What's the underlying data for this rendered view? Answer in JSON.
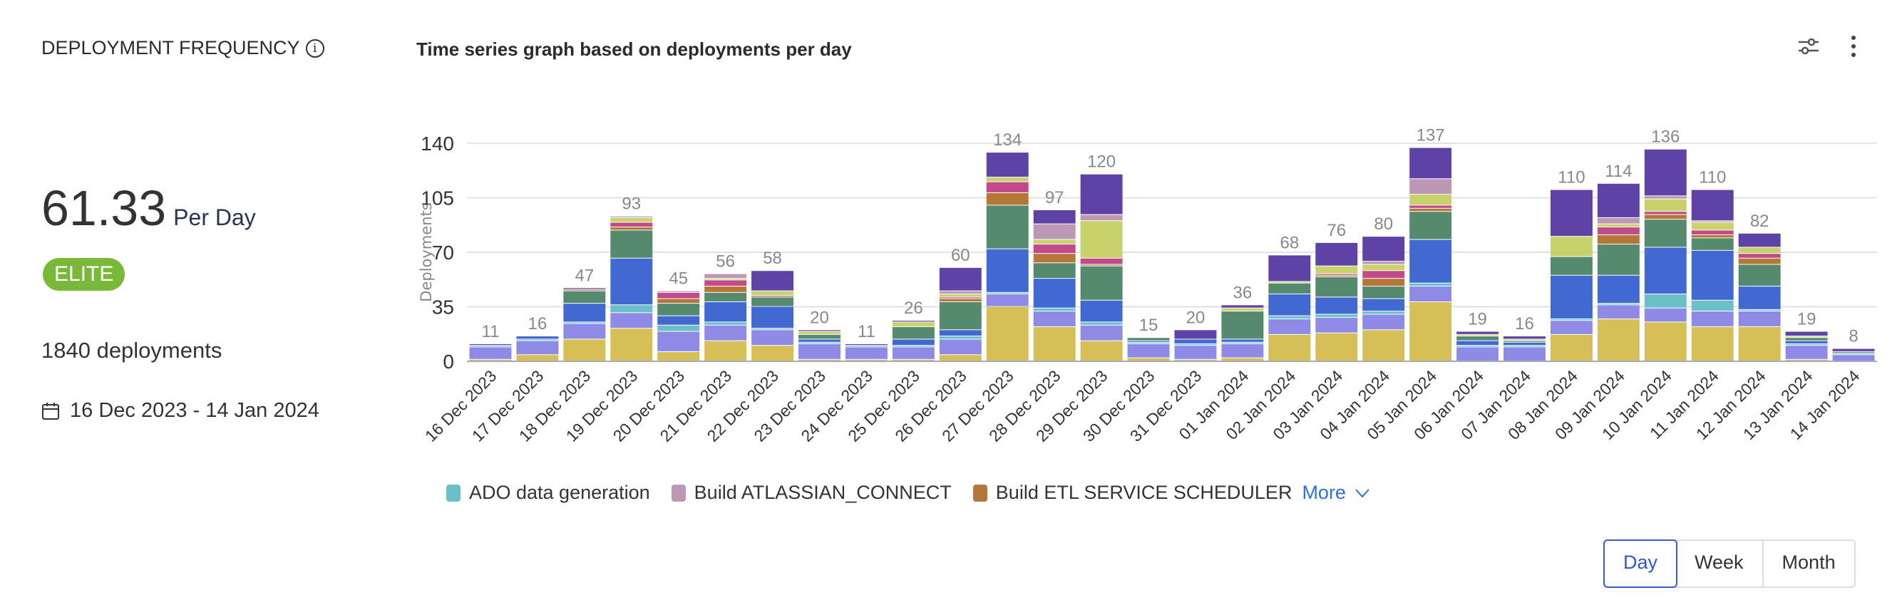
{
  "metric": {
    "title": "DEPLOYMENT FREQUENCY",
    "value": "61.33",
    "unit": "Per Day",
    "badge": "ELITE",
    "badge_color": "#7ab83a",
    "count": "1840 deployments",
    "date_range": "16 Dec 2023 - 14 Jan 2024"
  },
  "chart_header": {
    "title": "Time series graph based on deployments per day",
    "icons": [
      "sliders-icon",
      "more-vertical-icon"
    ]
  },
  "legend": {
    "items": [
      {
        "label": "ADO data generation",
        "color": "#6bbfc6"
      },
      {
        "label": "Build ATLASSIAN_CONNECT",
        "color": "#bd98b5"
      },
      {
        "label": "Build ETL SERVICE SCHEDULER",
        "color": "#b5763a"
      }
    ],
    "more_label": "More"
  },
  "periods": {
    "options": [
      "Day",
      "Week",
      "Month"
    ],
    "selected": "Day"
  },
  "chart_data": {
    "type": "bar",
    "stacked": true,
    "title": "",
    "ylabel": "Deployments",
    "xlabel": "",
    "ylim": [
      0,
      140
    ],
    "yticks": [
      0,
      35,
      70,
      105,
      140
    ],
    "grid": true,
    "categories": [
      "16 Dec 2023",
      "17 Dec 2023",
      "18 Dec 2023",
      "19 Dec 2023",
      "20 Dec 2023",
      "21 Dec 2023",
      "22 Dec 2023",
      "23 Dec 2023",
      "24 Dec 2023",
      "25 Dec 2023",
      "26 Dec 2023",
      "27 Dec 2023",
      "28 Dec 2023",
      "29 Dec 2023",
      "30 Dec 2023",
      "31 Dec 2023",
      "01 Jan 2024",
      "02 Jan 2024",
      "03 Jan 2024",
      "04 Jan 2024",
      "05 Jan 2024",
      "06 Jan 2024",
      "07 Jan 2024",
      "08 Jan 2024",
      "09 Jan 2024",
      "10 Jan 2024",
      "11 Jan 2024",
      "12 Jan 2024",
      "13 Jan 2024",
      "14 Jan 2024"
    ],
    "totals": [
      11,
      16,
      47,
      93,
      45,
      56,
      58,
      20,
      11,
      26,
      60,
      134,
      97,
      120,
      15,
      20,
      36,
      68,
      76,
      80,
      137,
      19,
      16,
      110,
      114,
      136,
      110,
      82,
      19,
      8
    ],
    "series": [
      {
        "color": "#d6bf56",
        "values": [
          1,
          4,
          14,
          21,
          6,
          13,
          10,
          1,
          1,
          1,
          4,
          35,
          22,
          13,
          2,
          1,
          2,
          17,
          18,
          20,
          38,
          0,
          0,
          17,
          27,
          25,
          22,
          22,
          1,
          0
        ]
      },
      {
        "color": "#8f8ae6",
        "values": [
          8,
          9,
          10,
          10,
          13,
          10,
          10,
          10,
          8,
          8,
          10,
          8,
          10,
          10,
          9,
          9,
          9,
          10,
          10,
          10,
          10,
          9,
          9,
          9,
          9,
          9,
          10,
          10,
          9,
          4
        ]
      },
      {
        "name": "ADO data generation",
        "color": "#6bbfc6",
        "values": [
          1,
          1,
          1,
          5,
          4,
          2,
          1,
          1,
          1,
          1,
          2,
          1,
          2,
          2,
          1,
          1,
          1,
          2,
          2,
          2,
          2,
          1,
          1,
          1,
          1,
          9,
          7,
          1,
          1,
          1
        ]
      },
      {
        "color": "#4169d1",
        "values": [
          0,
          2,
          12,
          30,
          6,
          13,
          14,
          2,
          0,
          4,
          4,
          28,
          19,
          14,
          1,
          3,
          2,
          14,
          11,
          8,
          28,
          3,
          2,
          28,
          18,
          30,
          32,
          15,
          2,
          0
        ]
      },
      {
        "color": "#558a6e",
        "values": [
          0,
          0,
          8,
          18,
          8,
          6,
          6,
          3,
          0,
          8,
          18,
          28,
          10,
          22,
          2,
          0,
          18,
          7,
          13,
          8,
          18,
          3,
          1,
          12,
          20,
          18,
          8,
          14,
          2,
          1
        ]
      },
      {
        "name": "Build ETL SERVICE SCHEDULER",
        "color": "#b5763a",
        "values": [
          0,
          0,
          1,
          2,
          3,
          4,
          0,
          0,
          0,
          0,
          2,
          8,
          6,
          1,
          0,
          0,
          0,
          0,
          1,
          5,
          2,
          0,
          0,
          0,
          6,
          3,
          2,
          4,
          0,
          0
        ]
      },
      {
        "color": "#c04a8a",
        "values": [
          0,
          0,
          0,
          3,
          4,
          4,
          1,
          0,
          0,
          0,
          1,
          7,
          6,
          4,
          0,
          0,
          0,
          0,
          1,
          5,
          2,
          0,
          0,
          0,
          5,
          2,
          3,
          3,
          0,
          0
        ]
      },
      {
        "color": "#c7d36a",
        "values": [
          0,
          0,
          0,
          3,
          0,
          1,
          3,
          2,
          0,
          3,
          2,
          3,
          3,
          24,
          0,
          0,
          2,
          1,
          5,
          4,
          7,
          1,
          1,
          13,
          2,
          8,
          5,
          4,
          1,
          0
        ]
      },
      {
        "name": "Build ATLASSIAN_CONNECT",
        "color": "#bd98b5",
        "values": [
          0,
          0,
          0,
          1,
          1,
          3,
          0,
          0,
          0,
          0,
          2,
          0,
          10,
          4,
          0,
          0,
          0,
          0,
          0,
          2,
          10,
          0,
          0,
          0,
          4,
          2,
          1,
          0,
          0,
          0
        ]
      },
      {
        "color": "#5f42a6",
        "values": [
          1,
          0,
          1,
          0,
          0,
          0,
          13,
          1,
          1,
          1,
          15,
          16,
          9,
          26,
          0,
          6,
          2,
          17,
          15,
          16,
          20,
          2,
          2,
          30,
          22,
          30,
          20,
          9,
          3,
          2
        ]
      }
    ]
  }
}
